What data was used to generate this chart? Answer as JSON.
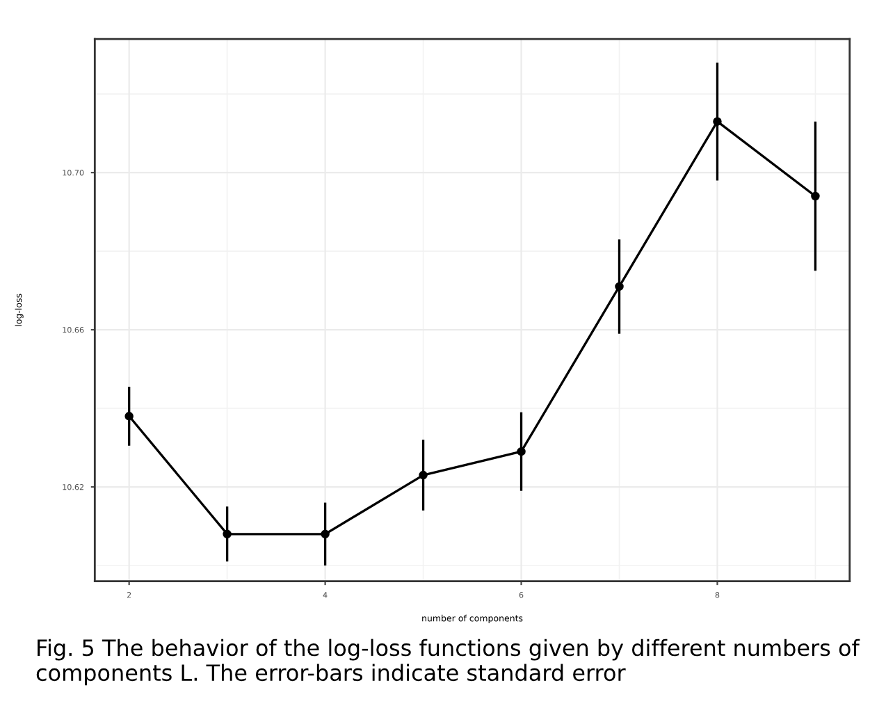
{
  "chart_data": {
    "type": "line",
    "xlabel": "number of components",
    "ylabel": "log-loss",
    "x": [
      2,
      3,
      4,
      5,
      6,
      7,
      8,
      9
    ],
    "series": [
      {
        "color": "#000000",
        "values": [
          10.638,
          10.608,
          10.608,
          10.623,
          10.629,
          10.671,
          10.713,
          10.694
        ],
        "errors": [
          0.0075,
          0.007,
          0.008,
          0.009,
          0.01,
          0.012,
          0.015,
          0.019
        ]
      }
    ],
    "xlim": [
      1.65,
      9.35
    ],
    "xticks": [
      2,
      4,
      6,
      8
    ],
    "ylim": [
      10.596,
      10.734
    ],
    "yticks": [
      10.62,
      10.66,
      {
        "value": 10.7,
        "label": "10.70"
      }
    ],
    "grid": true,
    "marker": "circle",
    "line_style": "solid",
    "annotations": [
      "Fig. 5 The behavior of the log-loss functions given by different numbers of components L. The error-bars indicate standard error"
    ]
  }
}
